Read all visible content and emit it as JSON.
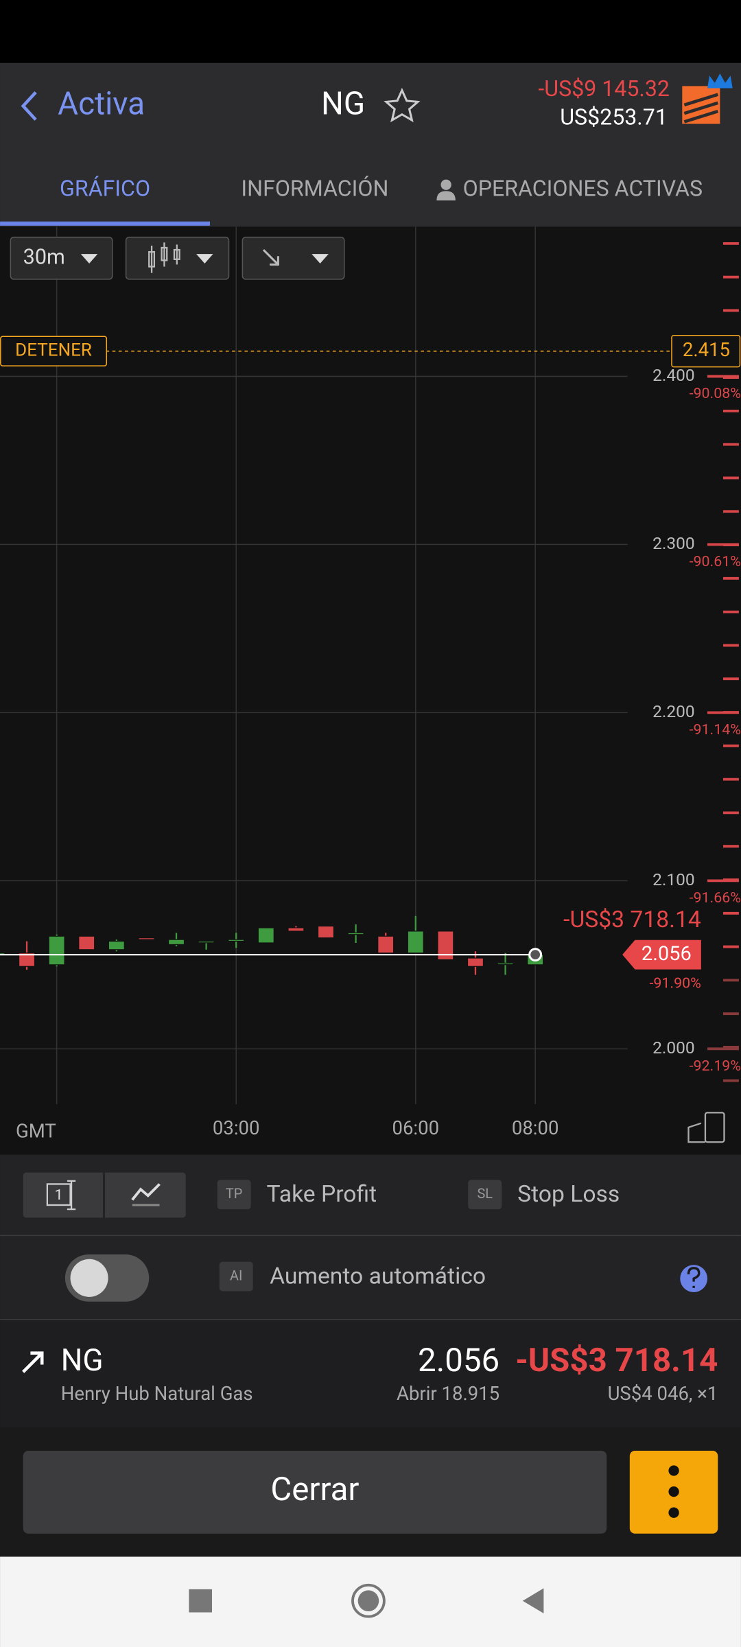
{
  "header": {
    "back": "Activa",
    "symbol": "NG",
    "pnl": "-US$9 145.32",
    "balance": "US$253.71"
  },
  "tabs": [
    "GRÁFICO",
    "INFORMACIÓN",
    "OPERACIONES ACTIVAS"
  ],
  "toolbar": {
    "timeframe": "30m"
  },
  "chart_data": {
    "type": "candlestick",
    "categories": [
      null,
      null,
      null,
      null,
      null,
      null,
      null,
      null,
      "03:00",
      null,
      null,
      null,
      null,
      null,
      "06:00",
      null,
      null,
      null,
      "08:00"
    ],
    "x_label": "GMT",
    "open": [
      2.057,
      2.057,
      2.05,
      2.067,
      2.059,
      2.066,
      2.062,
      2.064,
      2.064,
      2.063,
      2.072,
      2.073,
      2.068,
      2.067,
      2.057,
      2.07,
      2.054,
      2.051,
      2.05
    ],
    "high": [
      2.058,
      2.064,
      2.068,
      2.067,
      2.065,
      2.066,
      2.069,
      2.064,
      2.069,
      2.072,
      2.073,
      2.073,
      2.074,
      2.069,
      2.079,
      2.07,
      2.058,
      2.057,
      2.056
    ],
    "low": [
      2.056,
      2.047,
      2.049,
      2.059,
      2.058,
      2.065,
      2.061,
      2.059,
      2.06,
      2.063,
      2.07,
      2.066,
      2.063,
      2.057,
      2.057,
      2.053,
      2.044,
      2.044,
      2.05
    ],
    "close": [
      2.057,
      2.049,
      2.067,
      2.059,
      2.064,
      2.065,
      2.065,
      2.064,
      2.065,
      2.072,
      2.07,
      2.066,
      2.069,
      2.057,
      2.07,
      2.053,
      2.049,
      2.051,
      2.056
    ],
    "up_color": "#3f9b3f",
    "down_color": "#d9464a",
    "ylim": [
      1.967,
      2.489
    ],
    "yticks": [
      {
        "value": 2.0,
        "label": "2.000"
      },
      {
        "value": 2.1,
        "label": "2.100"
      },
      {
        "value": 2.2,
        "label": "2.200"
      },
      {
        "value": 2.3,
        "label": "2.300"
      },
      {
        "value": 2.4,
        "label": "2.400"
      }
    ],
    "ytick_notes": [
      "-92.19%",
      "-91.66%",
      "-91.14%",
      "-90.61%",
      "-90.08%"
    ],
    "grid": true,
    "stop": {
      "label": "DETENER",
      "value": 2.415
    },
    "last": {
      "value": 2.056,
      "pnl": "-US$3 718.14",
      "pct": "-91.90%"
    }
  },
  "controls": {
    "order_icon": "1",
    "take_profit": {
      "badge": "TP",
      "label": "Take Profit"
    },
    "stop_loss": {
      "badge": "SL",
      "label": "Stop Loss"
    },
    "auto": {
      "badge": "AI",
      "label": "Aumento automático"
    }
  },
  "position": {
    "symbol": "NG",
    "name": "Henry Hub Natural Gas",
    "price": "2.056",
    "pnl": "-US$3 718.14",
    "open": "Abrir 18.915",
    "size": "US$4 046, ×1"
  },
  "close_button": "Cerrar"
}
